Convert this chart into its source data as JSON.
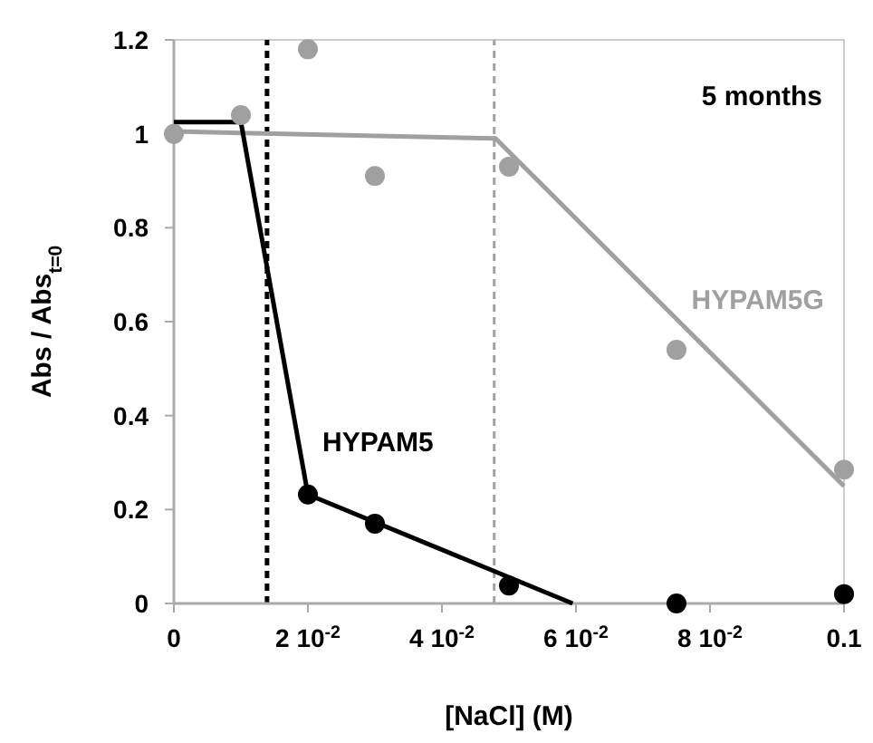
{
  "chart_data": {
    "type": "scatter",
    "xlabel": "[NaCl] (M)",
    "ylabel": "Abs / Abs$_{t=0}$",
    "xlim": [
      0,
      0.1
    ],
    "ylim": [
      0,
      1.2
    ],
    "xticks": [
      0,
      {
        "value": 0.02,
        "label": "2 10$^{-2}$"
      },
      {
        "value": 0.04,
        "label": "4 10$^{-2}$"
      },
      {
        "value": 0.06,
        "label": "6 10$^{-2}$"
      },
      {
        "value": 0.08,
        "label": "8 10$^{-2}$"
      },
      0.1
    ],
    "yticks": [
      0,
      0.2,
      0.4,
      0.6,
      0.8,
      1,
      1.2
    ],
    "grid": false,
    "marker": "circle",
    "series": [
      {
        "type": "line",
        "name": "HYPAM5G",
        "color": "#a0a0a0",
        "x": [
          0,
          0.048,
          0.1
        ],
        "values": [
          1.005,
          0.99,
          0.25
        ],
        "marker": "none"
      },
      {
        "type": "line",
        "name": "HYPAM5",
        "color": "#000000",
        "x": [
          0,
          0.01,
          0.02,
          0.0595
        ],
        "values": [
          1.025,
          1.025,
          0.232,
          0
        ],
        "marker": "none"
      },
      {
        "color": "#a0a0a0",
        "x": [
          0,
          0.01,
          0.02,
          0.03,
          0.05,
          0.075,
          0.1
        ],
        "values": [
          1.0,
          1.04,
          1.18,
          0.91,
          0.93,
          0.54,
          0.285
        ]
      },
      {
        "color": "#000000",
        "x": [
          0.02,
          0.03,
          0.05,
          0.075,
          0.1
        ],
        "values": [
          0.232,
          0.17,
          0.038,
          0,
          0.02
        ]
      }
    ],
    "ref_lines": [
      {
        "axis": "x",
        "value": 0.0139,
        "color": "#000000",
        "line_style": "dashed"
      },
      {
        "axis": "x",
        "value": 0.0478,
        "color": "#a0a0a0",
        "line_style": "dashed"
      }
    ],
    "annotations": [
      "5 months"
    ]
  }
}
